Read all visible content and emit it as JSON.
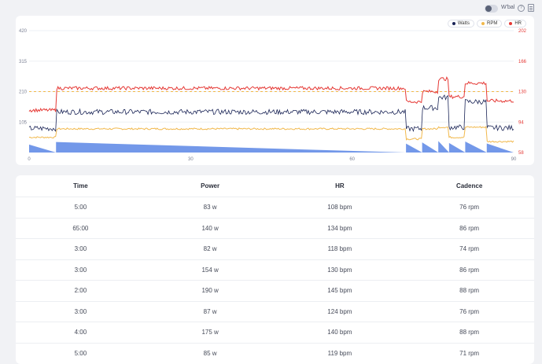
{
  "topbar": {
    "wbal_label": "W'bal",
    "help_glyph": "?"
  },
  "chart_data": {
    "type": "line",
    "series": [
      {
        "name": "Watts",
        "color": "#1a2456",
        "axis": "left"
      },
      {
        "name": "RPM",
        "color": "#f1b84b",
        "axis": "right"
      },
      {
        "name": "HR",
        "color": "#e53935",
        "axis": "right"
      }
    ],
    "x_ticks": [
      "0",
      "30",
      "60",
      "90"
    ],
    "x_range": [
      0,
      90
    ],
    "left_ticks": [
      "420",
      "315",
      "210",
      "105"
    ],
    "left_range": [
      0,
      420
    ],
    "right_ticks": [
      "202",
      "166",
      "130",
      "94",
      "58"
    ],
    "right_range": [
      58,
      202
    ],
    "reference_line": {
      "axis": "left",
      "value": 210,
      "color": "#f1b84b"
    },
    "fill_color": "#5b86e5",
    "segments": [
      {
        "start": 0,
        "duration": 5,
        "watts": 83,
        "hr": 108,
        "rpm": 76
      },
      {
        "start": 5,
        "duration": 65,
        "watts": 140,
        "hr": 134,
        "rpm": 86
      },
      {
        "start": 70,
        "duration": 3,
        "watts": 82,
        "hr": 118,
        "rpm": 74
      },
      {
        "start": 73,
        "duration": 3,
        "watts": 154,
        "hr": 130,
        "rpm": 86
      },
      {
        "start": 76,
        "duration": 2,
        "watts": 190,
        "hr": 145,
        "rpm": 88
      },
      {
        "start": 78,
        "duration": 3,
        "watts": 87,
        "hr": 124,
        "rpm": 76
      },
      {
        "start": 81,
        "duration": 4,
        "watts": 175,
        "hr": 140,
        "rpm": 88
      },
      {
        "start": 85,
        "duration": 5,
        "watts": 85,
        "hr": 119,
        "rpm": 71
      }
    ]
  },
  "table": {
    "headers": [
      "Time",
      "Power",
      "HR",
      "Cadence"
    ],
    "rows": [
      [
        "5:00",
        "83 w",
        "108 bpm",
        "76 rpm"
      ],
      [
        "65:00",
        "140 w",
        "134 bpm",
        "86 rpm"
      ],
      [
        "3:00",
        "82 w",
        "118 bpm",
        "74 rpm"
      ],
      [
        "3:00",
        "154 w",
        "130 bpm",
        "86 rpm"
      ],
      [
        "2:00",
        "190 w",
        "145 bpm",
        "88 rpm"
      ],
      [
        "3:00",
        "87 w",
        "124 bpm",
        "76 rpm"
      ],
      [
        "4:00",
        "175 w",
        "140 bpm",
        "88 rpm"
      ],
      [
        "5:00",
        "85 w",
        "119 bpm",
        "71 rpm"
      ]
    ]
  }
}
